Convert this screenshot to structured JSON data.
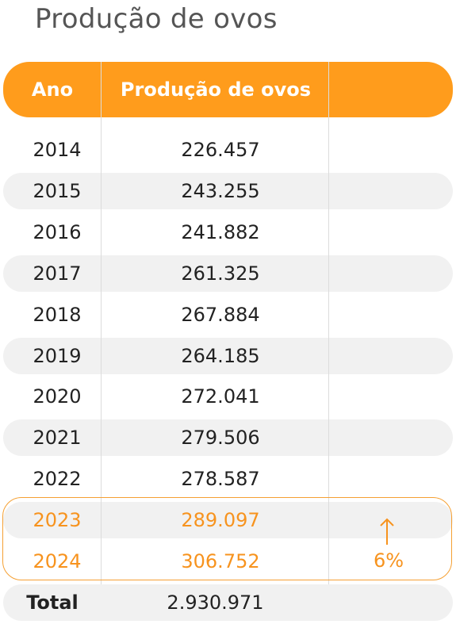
{
  "title": "Produção de ovos",
  "chart_data": {
    "type": "table",
    "columns": [
      "Ano",
      "Produção de ovos",
      ""
    ],
    "rows": [
      {
        "year": "2014",
        "value": "226.457"
      },
      {
        "year": "2015",
        "value": "243.255"
      },
      {
        "year": "2016",
        "value": "241.882"
      },
      {
        "year": "2017",
        "value": "261.325"
      },
      {
        "year": "2018",
        "value": "267.884"
      },
      {
        "year": "2019",
        "value": "264.185"
      },
      {
        "year": "2020",
        "value": "272.041"
      },
      {
        "year": "2021",
        "value": "279.506"
      },
      {
        "year": "2022",
        "value": "278.587"
      },
      {
        "year": "2023",
        "value": "289.097"
      },
      {
        "year": "2024",
        "value": "306.752"
      }
    ],
    "highlight": {
      "years": [
        "2023",
        "2024"
      ],
      "change_label": "6%",
      "direction": "up"
    },
    "total": {
      "label": "Total",
      "value": "2.930.971"
    }
  },
  "colors": {
    "header": "#ff9c1c",
    "highlight": "#f7931e",
    "stripe": "#f1f1f1",
    "title": "#555555",
    "text": "#222222"
  }
}
